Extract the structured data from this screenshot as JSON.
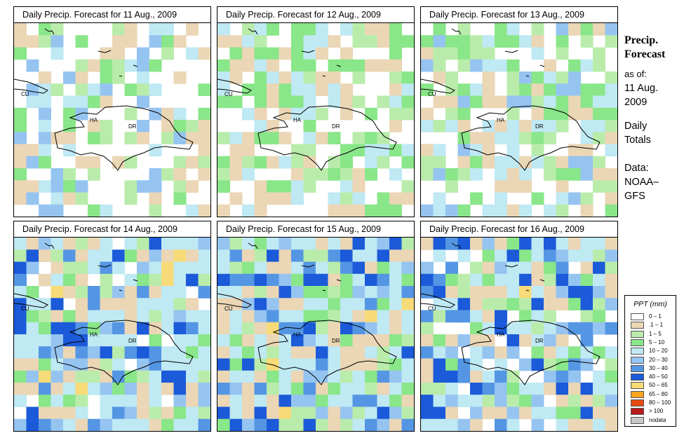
{
  "panels": [
    {
      "title": "Daily Precip. Forecast for  11 Aug., 2009"
    },
    {
      "title": "Daily Precip. Forecast for  12 Aug., 2009"
    },
    {
      "title": "Daily Precip. Forecast for  13 Aug., 2009"
    },
    {
      "title": "Daily Precip. Forecast for  14 Aug., 2009"
    },
    {
      "title": "Daily Precip. Forecast for  15 Aug., 2009"
    },
    {
      "title": "Daily Precip. Forecast for  16 Aug., 2009"
    }
  ],
  "map_labels": {
    "cuba": "CU",
    "haiti": "HA",
    "dominican_republic": "DR"
  },
  "sidebar": {
    "title_line1": "Precip.",
    "title_line2": "Forecast",
    "asof_line1": "as of:",
    "asof_line2": "11 Aug.",
    "asof_line3": "2009",
    "daily_line1": "Daily",
    "daily_line2": "Totals",
    "data_line1": "Data:",
    "data_line2": "NOAA–",
    "data_line3": "GFS"
  },
  "legend": {
    "title": "PPT (mm)",
    "items": [
      {
        "label": "0 – 1",
        "color": "#ffffff"
      },
      {
        "label": ".1 – 1",
        "color": "#ebd6b5"
      },
      {
        "label": "1 – 5",
        "color": "#b9ecab"
      },
      {
        "label": "5 – 10",
        "color": "#89e689"
      },
      {
        "label": "10 – 20",
        "color": "#bfe9f3"
      },
      {
        "label": "20 – 30",
        "color": "#95c4f1"
      },
      {
        "label": "30 – 40",
        "color": "#5496e4"
      },
      {
        "label": "40 – 50",
        "color": "#1b5ad8"
      },
      {
        "label": "50 – 65",
        "color": "#f7db78"
      },
      {
        "label": "65 – 80",
        "color": "#f7a51d"
      },
      {
        "label": "80 – 100",
        "color": "#e64b12"
      },
      {
        "label": "> 100",
        "color": "#b81b1b"
      },
      {
        "label": "nodata",
        "color": "#c8c8c8"
      }
    ]
  }
}
